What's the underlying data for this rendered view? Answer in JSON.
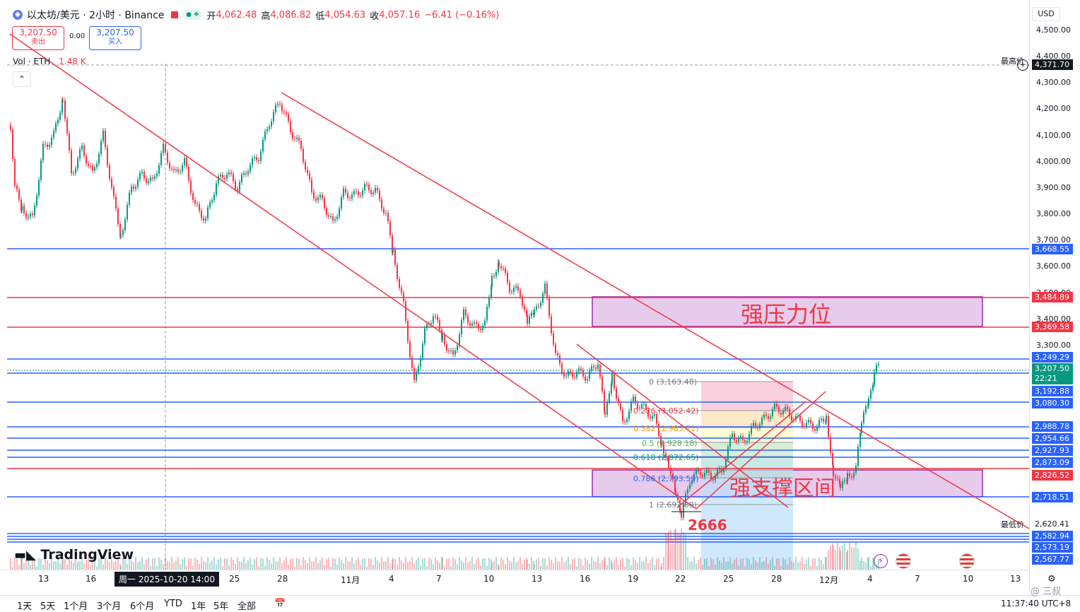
{
  "header": {
    "symbol": "以太坊/美元 · 2小时 · Binance",
    "open_label": "开",
    "open": "4,062.48",
    "high_label": "高",
    "high": "4,086.82",
    "low_label": "低",
    "low": "4,054.63",
    "close_label": "收",
    "close": "4,057.16",
    "change": "−6.41 (−0.16%)"
  },
  "trade": {
    "sell_price": "3,207.50",
    "sell_label": "卖出",
    "spread": "0.00",
    "buy_price": "3,207.50",
    "buy_label": "买入"
  },
  "volume": {
    "label": "Vol · ETH",
    "value": "1.48 K"
  },
  "currency": "USD",
  "price_axis": {
    "ticks": [
      "4,500.00",
      "4,400.00",
      "4,300.00",
      "4,200.00",
      "4,100.00",
      "4,000.00",
      "3,900.00",
      "3,800.00",
      "3,700.00",
      "3,600.00",
      "3,500.00",
      "3,400.00",
      "3,300.00"
    ],
    "high_label": "最高价",
    "low_label": "最低价",
    "current": "3,207.50",
    "countdown": "22:21",
    "tags": {
      "high": "4,371.70",
      "l3668": "3,668.55",
      "l3484": "3,484.89",
      "l3369": "3,369.58",
      "l3249": "3,249.29",
      "l3192": "3,192.88",
      "l3080": "3,080.30",
      "l2988": "2,988.78",
      "l2954": "2,954.66",
      "l2927": "2,927.93",
      "l2873": "2,873.09",
      "l2826": "2,826.52",
      "l2718": "2,718.51",
      "low": "2,620.41",
      "l2582": "2,582.94",
      "l2573": "2,573.19",
      "l2567": "2,567.77"
    }
  },
  "time_axis": [
    "13",
    "16",
    "周一 2025-10-20  14:00",
    "25",
    "28",
    "11月",
    "4",
    "7",
    "10",
    "13",
    "16",
    "19",
    "22",
    "25",
    "28",
    "12月",
    "4",
    "7",
    "10",
    "13"
  ],
  "annotations": {
    "resistance": "强压力位",
    "support": "强支撑区间",
    "low_mark": "2666"
  },
  "fib": {
    "f0": "0 (3,163.48)",
    "f236": "0.236 (3,052.42)",
    "f382": "0.382 (2,983.71)",
    "f5": "0.5 (2,928.18)",
    "f618": "0.618 (2,872.65)",
    "f786": "0.786 (2,793.59)",
    "f1": "1 (2,692.88)"
  },
  "logo": "TradingView",
  "periods": [
    "1天",
    "5天",
    "1个月",
    "3个月",
    "6个月",
    "YTD",
    "1年",
    "5年",
    "全部"
  ],
  "clock": "11:37:40 UTC+8",
  "watermark": "@ 三叔",
  "colors": {
    "red": "#f23645",
    "blue": "#2962ff",
    "purple": "#9c27b0",
    "up": "#089981",
    "down": "#f23645"
  }
}
